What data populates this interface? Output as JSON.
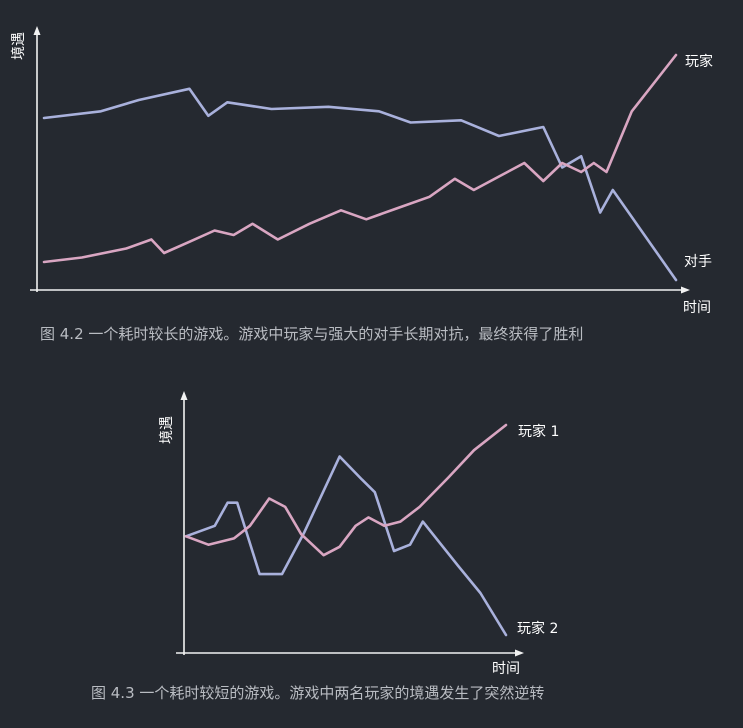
{
  "colors": {
    "background": "#252930",
    "axis": "#f2f2f2",
    "caption_text": "#b9bcc2",
    "blue_series": "#a9b1dc",
    "pink_series": "#d9a6c2"
  },
  "chart_data": [
    {
      "type": "line",
      "ylabel": "境遇",
      "xlabel": "时间",
      "caption": "图 4.2   一个耗时较长的游戏。游戏中玩家与强大的对手长期对抗，最终获得了胜利",
      "grid": false,
      "xlim": [
        0,
        100
      ],
      "ylim": [
        0,
        100
      ],
      "series": [
        {
          "name": "玩家",
          "color": "#d9a6c2",
          "points": [
            [
              0,
              8
            ],
            [
              6,
              10
            ],
            [
              13,
              14
            ],
            [
              17,
              18
            ],
            [
              19,
              12
            ],
            [
              23,
              17
            ],
            [
              27,
              22
            ],
            [
              30,
              20
            ],
            [
              33,
              25
            ],
            [
              37,
              18
            ],
            [
              42,
              25
            ],
            [
              47,
              31
            ],
            [
              51,
              27
            ],
            [
              56,
              32
            ],
            [
              61,
              37
            ],
            [
              65,
              45
            ],
            [
              68,
              40
            ],
            [
              72,
              46
            ],
            [
              76,
              52
            ],
            [
              79,
              44
            ],
            [
              82,
              52
            ],
            [
              85,
              48
            ],
            [
              87,
              52
            ],
            [
              89,
              48
            ],
            [
              93,
              75
            ],
            [
              100,
              100
            ]
          ]
        },
        {
          "name": "对手",
          "color": "#a9b1dc",
          "points": [
            [
              0,
              72
            ],
            [
              9,
              75
            ],
            [
              15,
              80
            ],
            [
              23,
              85
            ],
            [
              26,
              73
            ],
            [
              29,
              79
            ],
            [
              36,
              76
            ],
            [
              45,
              77
            ],
            [
              53,
              75
            ],
            [
              58,
              70
            ],
            [
              66,
              71
            ],
            [
              72,
              64
            ],
            [
              79,
              68
            ],
            [
              82,
              50
            ],
            [
              85,
              55
            ],
            [
              88,
              30
            ],
            [
              90,
              40
            ],
            [
              100,
              0
            ]
          ]
        }
      ]
    },
    {
      "type": "line",
      "ylabel": "境遇",
      "xlabel": "时间",
      "caption": "图 4.3   一个耗时较短的游戏。游戏中两名玩家的境遇发生了突然逆转",
      "grid": false,
      "xlim": [
        0,
        100
      ],
      "ylim": [
        0,
        100
      ],
      "series": [
        {
          "name": "玩家 1",
          "color": "#d9a6c2",
          "points": [
            [
              0,
              47
            ],
            [
              7,
              43
            ],
            [
              15,
              46
            ],
            [
              20,
              52
            ],
            [
              26,
              65
            ],
            [
              31,
              61
            ],
            [
              36,
              48
            ],
            [
              43,
              38
            ],
            [
              48,
              42
            ],
            [
              53,
              52
            ],
            [
              57,
              56
            ],
            [
              62,
              52
            ],
            [
              67,
              54
            ],
            [
              73,
              61
            ],
            [
              82,
              75
            ],
            [
              90,
              88
            ],
            [
              100,
              100
            ]
          ]
        },
        {
          "name": "玩家 2",
          "color": "#a9b1dc",
          "points": [
            [
              0,
              47
            ],
            [
              9,
              52
            ],
            [
              13,
              63
            ],
            [
              16,
              63
            ],
            [
              23,
              29
            ],
            [
              30,
              29
            ],
            [
              37,
              49
            ],
            [
              48,
              85
            ],
            [
              55,
              74
            ],
            [
              59,
              68
            ],
            [
              65,
              40
            ],
            [
              70,
              43
            ],
            [
              74,
              54
            ],
            [
              85,
              33
            ],
            [
              92,
              20
            ],
            [
              100,
              0
            ]
          ]
        }
      ]
    }
  ]
}
